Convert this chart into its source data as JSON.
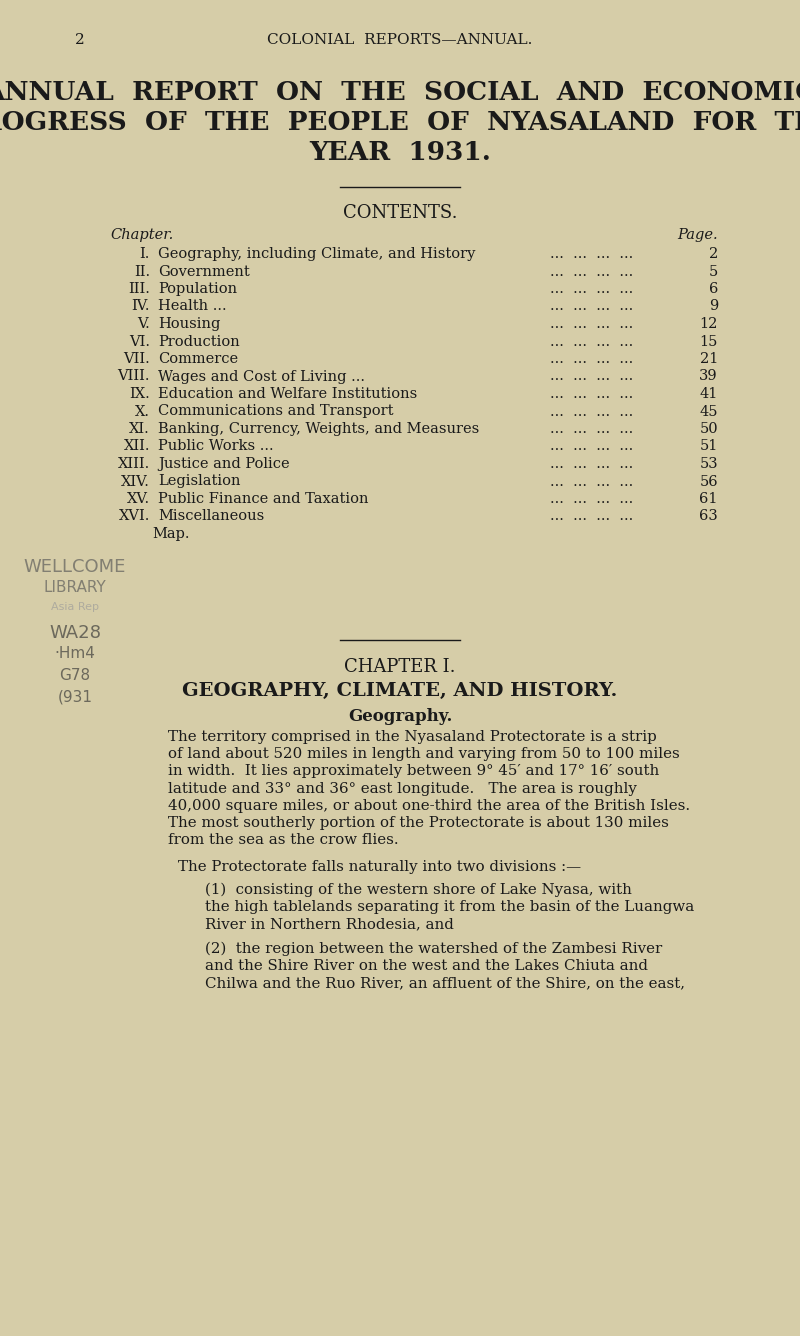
{
  "bg_color": "#d6cda8",
  "text_color": "#1a1a1a",
  "page_num": "2",
  "header": "COLONIAL  REPORTS—ANNUAL.",
  "main_title_lines": [
    "ANNUAL  REPORT  ON  THE  SOCIAL  AND  ECONOMIC",
    "PROGRESS  OF  THE  PEOPLE  OF  NYASALAND  FOR  THE",
    "YEAR  1931."
  ],
  "contents_title": "CONTENTS.",
  "chapter_label": "Chapter.",
  "page_label": "Page.",
  "toc_entries": [
    [
      "I.",
      "Geography, including Climate, and History",
      "2"
    ],
    [
      "II.",
      "Government",
      "5"
    ],
    [
      "III.",
      "Population",
      "6"
    ],
    [
      "IV.",
      "Health ...",
      "9"
    ],
    [
      "V.",
      "Housing",
      "12"
    ],
    [
      "VI.",
      "Production",
      "15"
    ],
    [
      "VII.",
      "Commerce",
      "21"
    ],
    [
      "VIII.",
      "Wages and Cost of Living ...",
      "39"
    ],
    [
      "IX.",
      "Education and Welfare Institutions",
      "41"
    ],
    [
      "X.",
      "Communications and Transport",
      "45"
    ],
    [
      "XI.",
      "Banking, Currency, Weights, and Measures",
      "50"
    ],
    [
      "XII.",
      "Public Works ...",
      "51"
    ],
    [
      "XIII.",
      "Justice and Police",
      "53"
    ],
    [
      "XIV.",
      "Legislation",
      "56"
    ],
    [
      "XV.",
      "Public Finance and Taxation",
      "61"
    ],
    [
      "XVI.",
      "Miscellaneous",
      "63"
    ],
    [
      "",
      "Map.",
      ""
    ]
  ],
  "stamp_lines": [
    "WELLCOME",
    "LIBRARY",
    "Asia Rep",
    "WA28",
    "·Hm4",
    "G78",
    "(931"
  ],
  "stamp_sizes": [
    13,
    11,
    8,
    13,
    11,
    11,
    11
  ],
  "stamp_colors": [
    "#555555",
    "#555555",
    "#999999",
    "#333333",
    "#333333",
    "#333333",
    "#333333"
  ],
  "chapter1_header": "CHAPTER I.",
  "chapter1_title": "GEOGRAPHY, CLIMATE, AND HISTORY.",
  "chapter1_subtitle": "Geography.",
  "para1_lines": [
    "The territory comprised in the Nyasaland Protectorate is a strip",
    "of land about 520 miles in length and varying from 50 to 100 miles",
    "in width.  It lies approximately between 9° 45′ and 17° 16′ south",
    "latitude and 33° and 36° east longitude.   The area is roughly",
    "40,000 square miles, or about one-third the area of the British Isles.",
    "The most southerly portion of the Protectorate is about 130 miles",
    "from the sea as the crow flies."
  ],
  "para2": "The Protectorate falls naturally into two divisions :—",
  "div1_lines": [
    "(1)  consisting of the western shore of Lake Nyasa, with",
    "the high tablelands separating it from the basin of the Luangwa",
    "River in Northern Rhodesia, and"
  ],
  "div2_lines": [
    "(2)  the region between the watershed of the Zambesi River",
    "and the Shire River on the west and the Lakes Chiuta and",
    "Chilwa and the Ruo River, an affluent of the Shire, on the east,"
  ]
}
